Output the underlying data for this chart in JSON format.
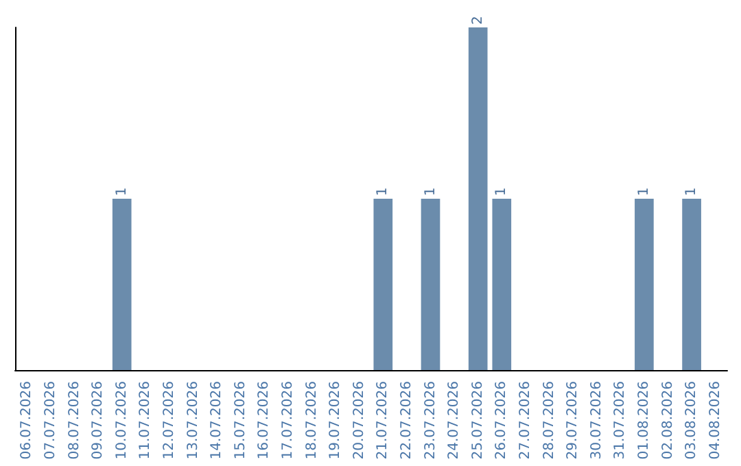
{
  "chart_data": {
    "type": "bar",
    "categories": [
      "06.07.2026",
      "07.07.2026",
      "08.07.2026",
      "09.07.2026",
      "10.07.2026",
      "11.07.2026",
      "12.07.2026",
      "13.07.2026",
      "14.07.2026",
      "15.07.2026",
      "16.07.2026",
      "17.07.2026",
      "18.07.2026",
      "19.07.2026",
      "20.07.2026",
      "21.07.2026",
      "22.07.2026",
      "23.07.2026",
      "24.07.2026",
      "25.07.2026",
      "26.07.2026",
      "27.07.2026",
      "28.07.2026",
      "29.07.2026",
      "30.07.2026",
      "31.07.2026",
      "01.08.2026",
      "02.08.2026",
      "03.08.2026",
      "04.08.2026"
    ],
    "values": [
      0,
      0,
      0,
      0,
      1,
      0,
      0,
      0,
      0,
      0,
      0,
      0,
      0,
      0,
      0,
      1,
      0,
      1,
      0,
      2,
      1,
      0,
      0,
      0,
      0,
      0,
      1,
      0,
      1,
      0
    ],
    "value_labels": [
      null,
      null,
      null,
      null,
      "1",
      null,
      null,
      null,
      null,
      null,
      null,
      null,
      null,
      null,
      null,
      "1",
      null,
      "1",
      null,
      "2",
      "1",
      null,
      null,
      null,
      null,
      null,
      "1",
      null,
      "1",
      null
    ],
    "color": "#6b8cac",
    "ylim": [
      0,
      2
    ],
    "tick_labels": "x"
  }
}
